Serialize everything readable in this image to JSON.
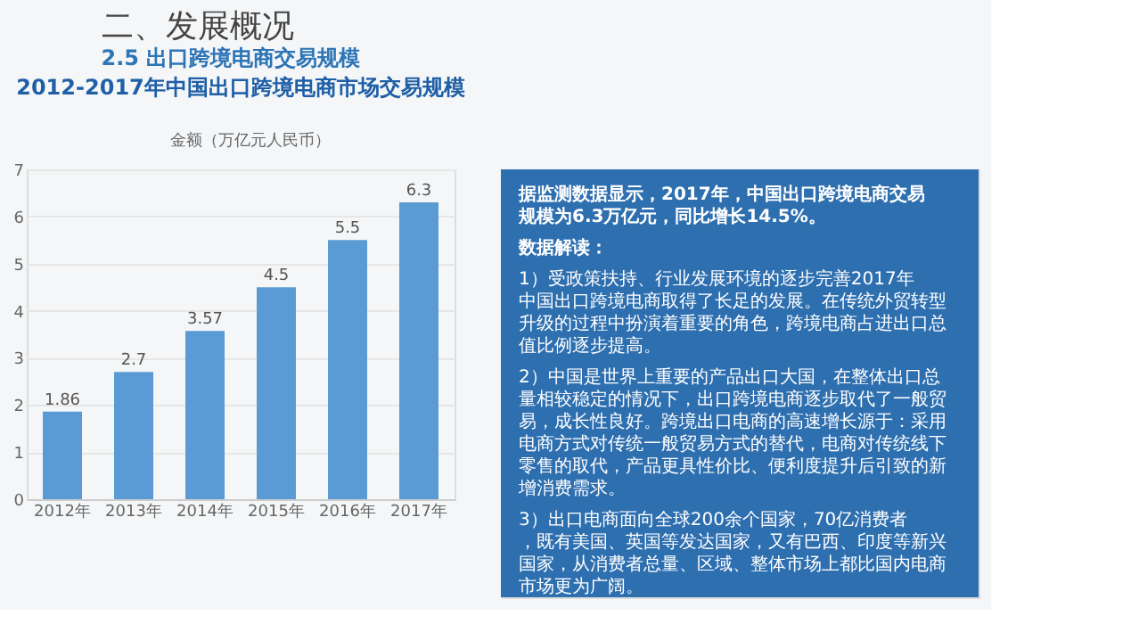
{
  "chart_data": {
    "type": "bar",
    "title": "二、发展概况",
    "subtitle": "2.5 出口跨境电商交易规模",
    "ylabel": "金额（万亿元人民币）",
    "categories": [
      "2012年",
      "2013年",
      "2014年",
      "2015年",
      "2016年",
      "2017年"
    ],
    "values": [
      1.86,
      2.7,
      3.57,
      4.5,
      5.5,
      6.3
    ],
    "color": "#5b9bd5",
    "ylim": [
      0,
      7
    ],
    "yticks": [
      0,
      1,
      2,
      3,
      4,
      5,
      6,
      7
    ],
    "grid": "y",
    "data_labels": true,
    "legend": false,
    "annotations": [
      "2012-2017年中国出口跨境电商市场交易规模",
      "据监测数据显示，2017年，中国出口跨境电商交易规模为6.3万亿元，同比增长14.5%。",
      "数据解读：",
      "1）受政策扶持、行业发展环境的逐步完善2017年中国出口跨境电商取得了长足的发展。在传统外贸转型升级的过程中扮演着重要的角色，跨境电商占进出口总值比例逐步提高。",
      "2）中国是世界上重要的产品出口大国，在整体出口总量相较稳定的情况下，出口跨境电商逐步取代了一般贸易，成长性良好。跨境出口电商的高速增长源于：采用电商方式对传统一般贸易方式的替代，电商对传统线下零售的取代，产品更具性价比、便利度提升后引致的新增消费需求。",
      "3）出口电商面向全球200余个国家，70亿消费者，既有美国、英国等发达国家，又有巴西、印度等新兴国家，从消费者总量、区域、整体市场上都比国内电商市场更为广阔。"
    ]
  }
}
